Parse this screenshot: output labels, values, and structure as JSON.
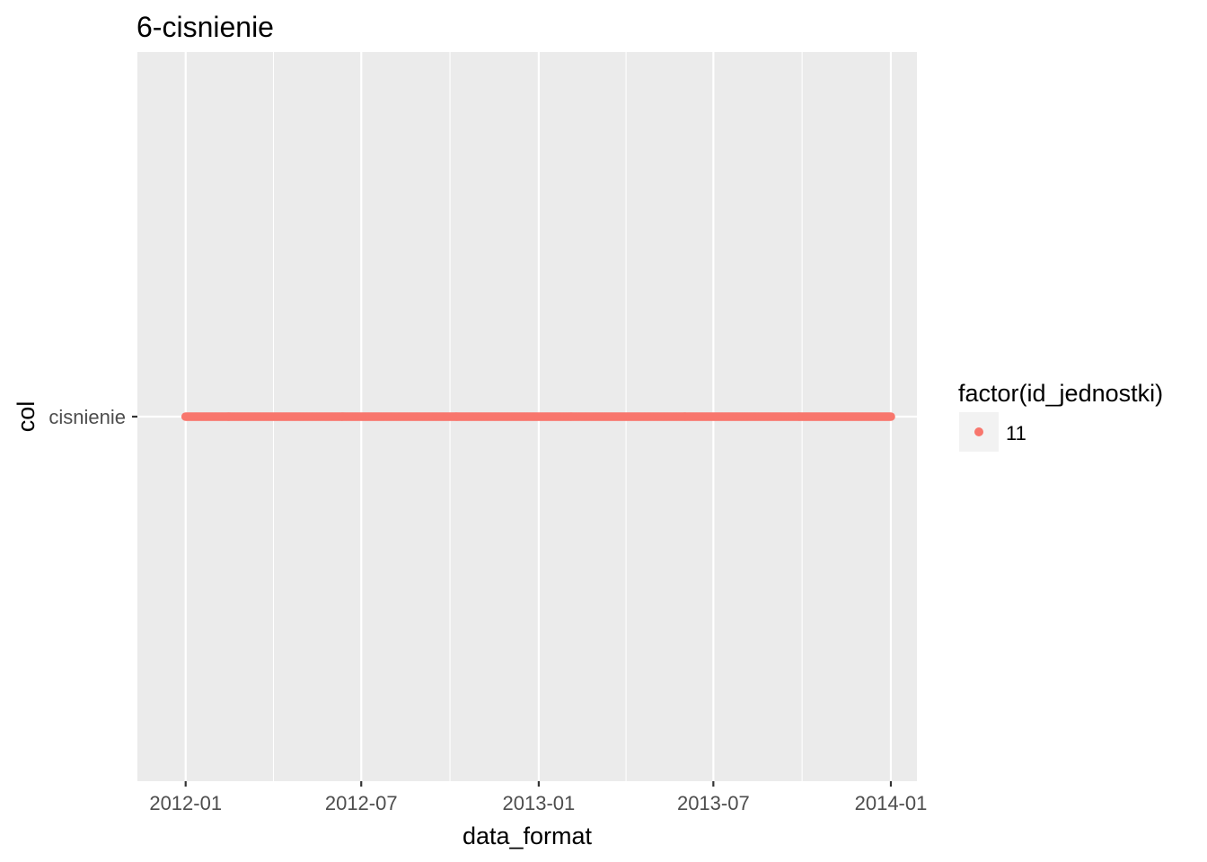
{
  "chart_data": {
    "type": "scatter",
    "title": "6-cisnienie",
    "xlabel": "data_format",
    "ylabel": "col",
    "x_axis": {
      "kind": "date",
      "range": [
        "2011-11-12",
        "2014-01-28"
      ],
      "ticks": [
        "2012-01",
        "2012-07",
        "2013-01",
        "2013-07",
        "2014-01"
      ]
    },
    "y_axis": {
      "kind": "categorical",
      "categories": [
        "cisnienie"
      ]
    },
    "series": [
      {
        "name": "11",
        "category": "cisnienie",
        "x_start": "2012-01-01",
        "x_end": "2014-01-01",
        "frequency": "daily",
        "color": "#F8766D"
      }
    ],
    "legend": {
      "title": "factor(id_jednostki)",
      "entries": [
        "11"
      ],
      "position": "right"
    },
    "grid": true,
    "panel_background": "#EBEBEB",
    "grid_color": "#FFFFFF"
  }
}
